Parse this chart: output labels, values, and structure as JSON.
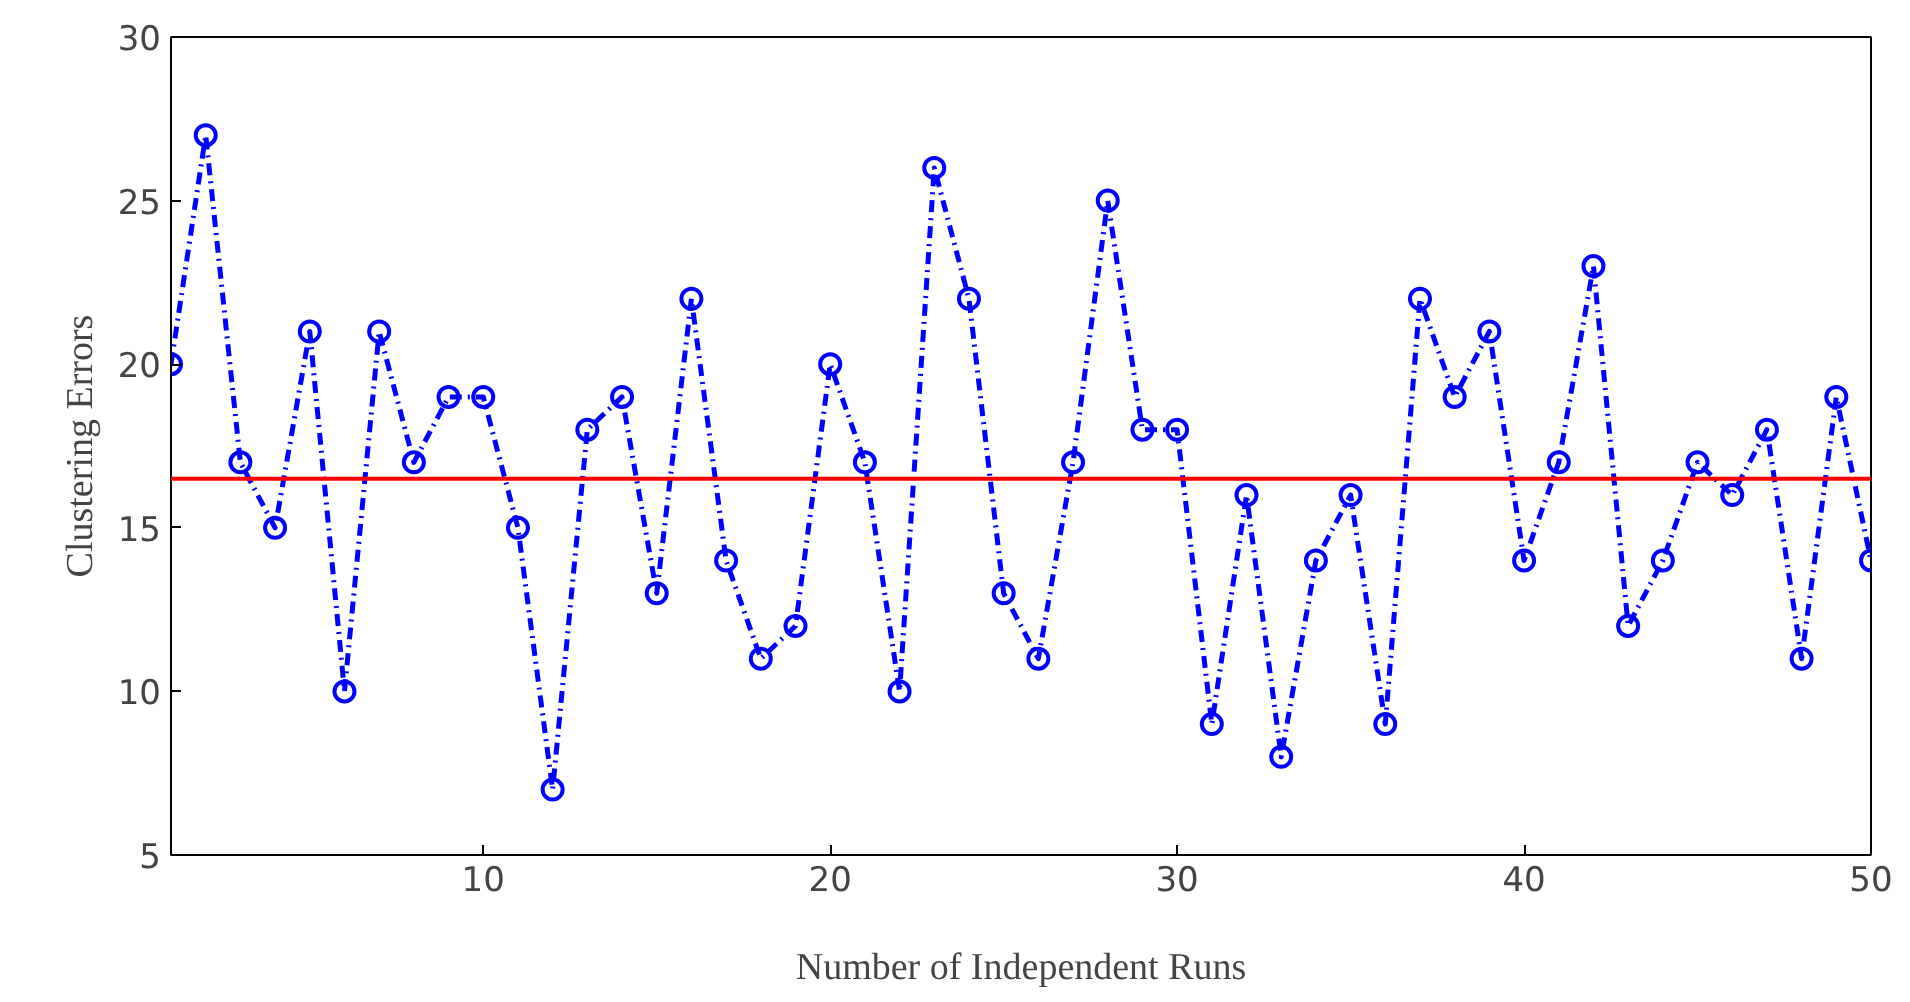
{
  "chart_data": {
    "type": "line",
    "xlabel": "Number of Independent Runs",
    "ylabel": "Clustering Errors",
    "x": [
      1,
      2,
      3,
      4,
      5,
      6,
      7,
      8,
      9,
      10,
      11,
      12,
      13,
      14,
      15,
      16,
      17,
      18,
      19,
      20,
      21,
      22,
      23,
      24,
      25,
      26,
      27,
      28,
      29,
      30,
      31,
      32,
      33,
      34,
      35,
      36,
      37,
      38,
      39,
      40,
      41,
      42,
      43,
      44,
      45,
      46,
      47,
      48,
      49,
      50
    ],
    "series": [
      {
        "color": "#0000ff",
        "values": [
          20,
          27,
          17,
          15,
          21,
          10,
          21,
          17,
          19,
          19,
          15,
          7,
          18,
          19,
          13,
          22,
          14,
          11,
          12,
          20,
          17,
          10,
          26,
          22,
          13,
          11,
          17,
          25,
          18,
          18,
          9,
          16,
          8,
          14,
          16,
          9,
          22,
          19,
          21,
          14,
          17,
          23,
          12,
          14,
          17,
          16,
          18,
          11,
          19,
          14
        ]
      }
    ],
    "marker": "circle",
    "line_style": "dashdot",
    "grid": false,
    "xlim": [
      1,
      50
    ],
    "xticks": [
      10,
      20,
      30,
      40,
      50
    ],
    "ylim": [
      5,
      30
    ],
    "yticks": [
      5,
      10,
      15,
      20,
      25,
      30
    ],
    "ref_lines": [
      {
        "axis": "y",
        "value": 16.5,
        "color": "#ff0000"
      }
    ]
  }
}
